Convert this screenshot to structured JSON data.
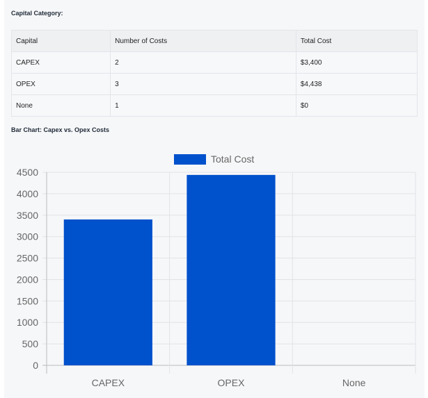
{
  "section_title": "Capital Category:",
  "table": {
    "headers": [
      "Capital",
      "Number of Costs",
      "Total Cost"
    ],
    "rows": [
      [
        "CAPEX",
        "2",
        "$3,400"
      ],
      [
        "OPEX",
        "3",
        "$4,438"
      ],
      [
        "None",
        "1",
        "$0"
      ]
    ]
  },
  "chart_title": "Bar Chart: Capex vs. Opex Costs",
  "chart_data": {
    "type": "bar",
    "categories": [
      "CAPEX",
      "OPEX",
      "None"
    ],
    "series": [
      {
        "name": "Total Cost",
        "values": [
          3400,
          4438,
          0
        ],
        "color": "#0051cc"
      }
    ],
    "ylim": [
      0,
      4500
    ],
    "yticks": [
      "0",
      "500",
      "1000",
      "1500",
      "2000",
      "2500",
      "3000",
      "3500",
      "4000",
      "4500"
    ],
    "grid": true,
    "legend": "top"
  }
}
